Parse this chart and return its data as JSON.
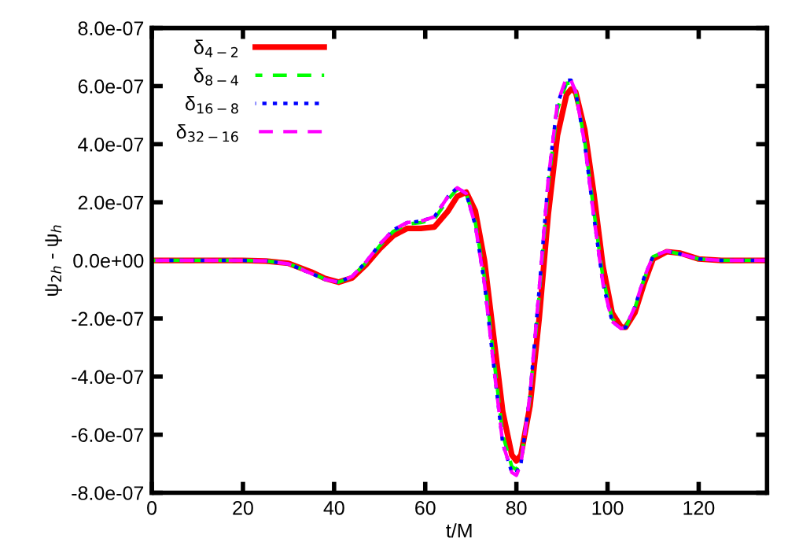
{
  "chart_data": {
    "type": "line",
    "xlabel": "t/M",
    "ylabel": "ψ$_{2h}$ - ψ$_{h}$",
    "x": [
      0,
      10,
      20,
      25,
      30,
      35,
      38,
      41,
      44,
      47,
      50,
      53,
      56,
      59,
      62,
      65,
      67,
      69,
      71,
      73,
      75,
      77,
      79,
      80,
      81,
      83,
      85,
      87,
      89,
      91,
      92,
      93,
      95,
      97,
      99,
      101,
      103,
      104,
      106,
      108,
      110,
      113,
      116,
      120,
      125,
      135
    ],
    "series": [
      {
        "name": "δ$_{4−2}$",
        "color": "#ff0000",
        "line_style": "solid",
        "values": [
          0,
          0,
          0,
          -2e-09,
          -1e-08,
          -4e-08,
          -6.2e-08,
          -7.5e-08,
          -6e-08,
          -1.5e-08,
          4e-08,
          8.5e-08,
          1.1e-07,
          1.1e-07,
          1.15e-07,
          1.7e-07,
          2.2e-07,
          2.35e-07,
          1.7e-07,
          0,
          -2.6e-07,
          -5.2e-07,
          -6.7e-07,
          -6.9e-07,
          -6.7e-07,
          -5e-07,
          -2e-07,
          1.6e-07,
          4.3e-07,
          5.7e-07,
          5.9e-07,
          5.8e-07,
          4.5e-07,
          2.3e-07,
          -2e-08,
          -1.8e-07,
          -2.3e-07,
          -2.3e-07,
          -1.8e-07,
          -8e-08,
          5e-09,
          3e-08,
          2.5e-08,
          5e-09,
          0,
          0
        ]
      },
      {
        "name": "δ$_{8−4}$",
        "color": "#00ff00",
        "line_style": "dashed",
        "values": [
          0,
          0,
          0,
          -2e-09,
          -1.1e-08,
          -4.3e-08,
          -6.4e-08,
          -7.5e-08,
          -5.7e-08,
          -8e-09,
          5e-08,
          1e-07,
          1.25e-07,
          1.3e-07,
          1.42e-07,
          2.1e-07,
          2.45e-07,
          2.3e-07,
          1.3e-07,
          -6e-08,
          -3.3e-07,
          -6e-07,
          -7.1e-07,
          -7.2e-07,
          -6.9e-07,
          -4.7e-07,
          -1.2e-07,
          2.6e-07,
          5.2e-07,
          6.1e-07,
          6.1e-07,
          5.8e-07,
          4.1e-07,
          1.7e-07,
          -6e-08,
          -2e-07,
          -2.35e-07,
          -2.3e-07,
          -1.65e-07,
          -6.5e-08,
          1.3e-08,
          3.2e-08,
          2.2e-08,
          5e-09,
          0,
          0
        ]
      },
      {
        "name": "δ$_{16−8}$",
        "color": "#0000ff",
        "line_style": "dotted",
        "values": [
          0,
          0,
          0,
          -2e-09,
          -1.2e-08,
          -4.5e-08,
          -6.5e-08,
          -7.5e-08,
          -5.5e-08,
          -5e-09,
          5.5e-08,
          1.05e-07,
          1.3e-07,
          1.35e-07,
          1.5e-07,
          2.2e-07,
          2.5e-07,
          2.3e-07,
          1.2e-07,
          -8e-08,
          -3.6e-07,
          -6.3e-07,
          -7.3e-07,
          -7.3e-07,
          -7e-07,
          -4.6e-07,
          -1e-07,
          2.8e-07,
          5.4e-07,
          6.2e-07,
          6.2e-07,
          5.8e-07,
          4e-07,
          1.5e-07,
          -8e-08,
          -2.1e-07,
          -2.35e-07,
          -2.3e-07,
          -1.6e-07,
          -6e-08,
          1.5e-08,
          3.2e-08,
          2.2e-08,
          5e-09,
          0,
          0
        ]
      },
      {
        "name": "δ$_{32−16}$",
        "color": "#ff00ff",
        "line_style": "dashed",
        "values": [
          0,
          0,
          0,
          -2e-09,
          -1.2e-08,
          -4.5e-08,
          -6.5e-08,
          -7.5e-08,
          -5.5e-08,
          -5e-09,
          5.5e-08,
          1.05e-07,
          1.3e-07,
          1.35e-07,
          1.5e-07,
          2.2e-07,
          2.5e-07,
          2.3e-07,
          1.2e-07,
          -8e-08,
          -3.6e-07,
          -6.3e-07,
          -7.3e-07,
          -7.4e-07,
          -7e-07,
          -4.6e-07,
          -1e-07,
          2.8e-07,
          5.4e-07,
          6.3e-07,
          6.2e-07,
          5.8e-07,
          4e-07,
          1.5e-07,
          -8e-08,
          -2.1e-07,
          -2.35e-07,
          -2.3e-07,
          -1.6e-07,
          -6e-08,
          1.5e-08,
          3.2e-08,
          2.2e-08,
          5e-09,
          0,
          0
        ]
      }
    ],
    "xlim": [
      0,
      135
    ],
    "xticks": [
      0,
      20,
      40,
      60,
      80,
      100,
      120
    ],
    "ylim": [
      -8e-07,
      8e-07
    ],
    "yticks": [
      {
        "value": -8e-07,
        "label": "-8.0e-07"
      },
      {
        "value": -6e-07,
        "label": "-6.0e-07"
      },
      {
        "value": -4e-07,
        "label": "-4.0e-07"
      },
      {
        "value": -2e-07,
        "label": "-2.0e-07"
      },
      {
        "value": 0,
        "label": "0.0e+00"
      },
      {
        "value": 2e-07,
        "label": "2.0e-07"
      },
      {
        "value": 4e-07,
        "label": "4.0e-07"
      },
      {
        "value": 6e-07,
        "label": "6.0e-07"
      },
      {
        "value": 8e-07,
        "label": "8.0e-07"
      }
    ],
    "legend": "top left",
    "grid": false
  }
}
